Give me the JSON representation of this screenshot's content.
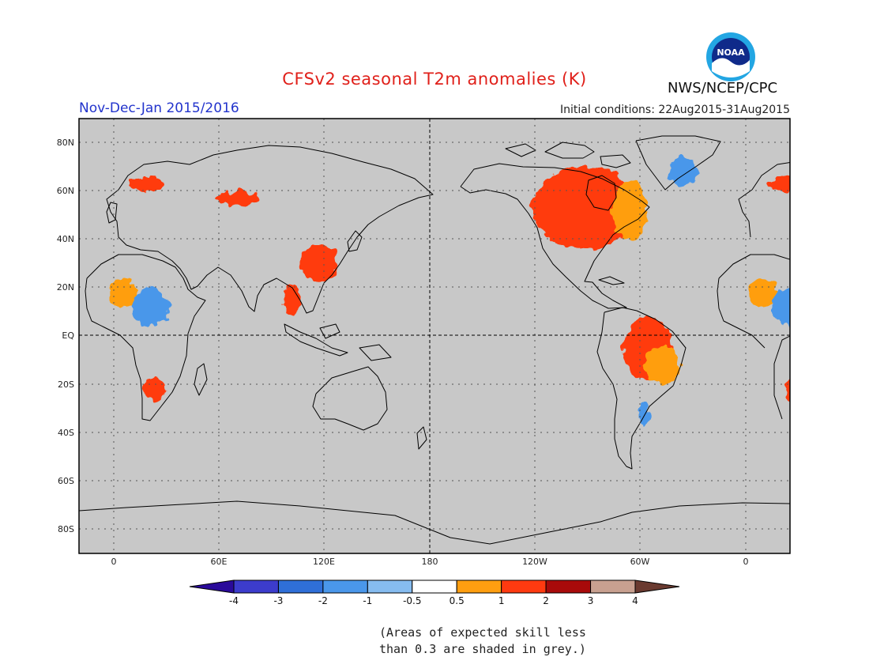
{
  "title": "CFSv2 seasonal T2m anomalies (K)",
  "agency": "NWS/NCEP/CPC",
  "logo_text": "NOAA",
  "season": "Nov-Dec-Jan 2015/2016",
  "initial_conditions": "Initial conditions: 22Aug2015-31Aug2015",
  "note_lines": [
    "(Areas of expected skill less",
    "than 0.3 are shaded in grey.)"
  ],
  "lat_labels": [
    "80N",
    "60N",
    "40N",
    "20N",
    "EQ",
    "20S",
    "40S",
    "60S",
    "80S"
  ],
  "lon_labels": [
    "0",
    "60E",
    "120E",
    "180",
    "120W",
    "60W",
    "0"
  ],
  "colorbar": {
    "labels": [
      "-4",
      "-3",
      "-2",
      "-1",
      "-0.5",
      "0.5",
      "1",
      "2",
      "3",
      "4"
    ],
    "colors": [
      "#2a0a9a",
      "#3c3ccc",
      "#2f6fd8",
      "#4a97ea",
      "#86bcf0",
      "#ffffff",
      "#ff9e10",
      "#ff3a10",
      "#a80a0a",
      "#c8a090",
      "#6a3a30"
    ]
  },
  "colors": {
    "ocean_grey": "#c8c8c8",
    "coast": "#000000",
    "title_red": "#e0201a",
    "season_blue": "#2233cc"
  },
  "chart_data": {
    "type": "heatmap",
    "title": "CFSv2 seasonal T2m anomalies (K)",
    "lon_range": [
      -20,
      380
    ],
    "lat_range": [
      -90,
      90
    ],
    "anomaly_regions": [
      {
        "region": "Hudson Bay / central Canada",
        "lon": 265,
        "lat": 55,
        "w": 18,
        "h": 12,
        "value": 3
      },
      {
        "region": "Canada",
        "lon": 265,
        "lat": 53,
        "w": 30,
        "h": 17,
        "value": 2
      },
      {
        "region": "Labrador / Quebec",
        "lon": 290,
        "lat": 52,
        "w": 10,
        "h": 12,
        "value": 1
      },
      {
        "region": "Northern Brazil",
        "lon": 302,
        "lat": -2,
        "w": 7,
        "h": 7,
        "value": 3
      },
      {
        "region": "Amazonia",
        "lon": 300,
        "lat": -5,
        "w": 14,
        "h": 13,
        "value": 2
      },
      {
        "region": "Brazil",
        "lon": 308,
        "lat": -12,
        "w": 10,
        "h": 8,
        "value": 1
      },
      {
        "region": "West Africa / Sahel",
        "lon": 5,
        "lat": 18,
        "w": 8,
        "h": 6,
        "value": 1
      },
      {
        "region": "Central Africa",
        "lon": 20,
        "lat": 12,
        "w": 10,
        "h": 8,
        "value": -1
      },
      {
        "region": "Southern Africa",
        "lon": 23,
        "lat": -22,
        "w": 6,
        "h": 5,
        "value": 2
      },
      {
        "region": "China",
        "lon": 115,
        "lat": 30,
        "w": 10,
        "h": 8,
        "value": 2
      },
      {
        "region": "Southeast Asia",
        "lon": 100,
        "lat": 15,
        "w": 5,
        "h": 6,
        "value": 2
      },
      {
        "region": "Western Siberia",
        "lon": 70,
        "lat": 57,
        "w": 12,
        "h": 3,
        "value": 2
      },
      {
        "region": "Scandinavia",
        "lon": 18,
        "lat": 63,
        "w": 10,
        "h": 3,
        "value": 2
      },
      {
        "region": "Greenland",
        "lon": 320,
        "lat": 68,
        "w": 8,
        "h": 6,
        "value": -1
      },
      {
        "region": "Southern South America",
        "lon": 298,
        "lat": -32,
        "w": 3,
        "h": 5,
        "value": -1
      }
    ]
  }
}
